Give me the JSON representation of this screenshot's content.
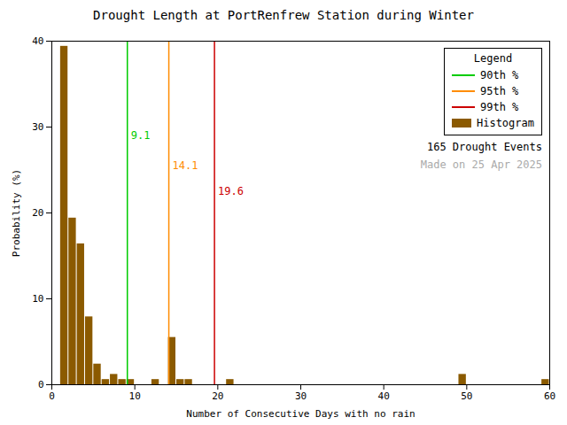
{
  "chart_data": {
    "type": "histogram",
    "title": "Drought Length at PortRenfrew Station during Winter",
    "xlabel": "Number of Consecutive Days with no rain",
    "ylabel": "Probability (%)",
    "xlim": [
      0,
      60
    ],
    "ylim": [
      0,
      40
    ],
    "xticks": [
      0,
      10,
      20,
      30,
      40,
      50,
      60
    ],
    "yticks": [
      0,
      10,
      20,
      30,
      40
    ],
    "grid": false,
    "legend": "upper right",
    "legend_title": "Legend",
    "series": [
      {
        "name": "90th %",
        "type": "vline",
        "color": "#00CC00",
        "values": [
          9.1
        ],
        "data_labels": true
      },
      {
        "name": "95th %",
        "type": "vline",
        "color": "#FF8C00",
        "values": [
          14.1
        ],
        "data_labels": true
      },
      {
        "name": "99th %",
        "type": "vline",
        "color": "#CC0000",
        "values": [
          19.6
        ],
        "data_labels": true
      },
      {
        "name": "Histogram",
        "type": "histogram",
        "color": "#8B5A00",
        "bins": [
          1,
          2,
          3,
          4,
          5,
          6,
          7,
          8,
          9,
          10,
          11,
          12,
          13,
          14,
          15,
          16,
          17,
          18,
          19,
          20,
          21,
          22,
          23,
          24,
          25,
          26,
          27,
          28,
          29,
          30,
          31,
          32,
          33,
          34,
          35,
          36,
          37,
          38,
          39,
          40,
          41,
          42,
          43,
          44,
          45,
          46,
          47,
          48,
          49,
          50,
          51,
          52,
          53,
          54,
          55,
          56,
          57,
          58,
          59,
          60
        ],
        "values": [
          39.4,
          19.4,
          16.4,
          7.9,
          2.4,
          0.6,
          1.2,
          0.6,
          0.6,
          0.0,
          0.0,
          0.6,
          0.0,
          5.5,
          0.6,
          0.6,
          0.0,
          0.0,
          0.0,
          0.0,
          0.6,
          0.0,
          0.0,
          0.0,
          0.0,
          0.0,
          0.0,
          0.0,
          0.0,
          0.0,
          0.0,
          0.0,
          0.0,
          0.0,
          0.0,
          0.0,
          0.0,
          0.0,
          0.0,
          0.0,
          0.0,
          0.0,
          0.0,
          0.0,
          0.0,
          0.0,
          0.0,
          0.0,
          1.2,
          0.0,
          0.0,
          0.0,
          0.0,
          0.0,
          0.0,
          0.0,
          0.0,
          0.0,
          0.6
        ]
      }
    ],
    "annotations": [
      {
        "text": "165 Drought Events"
      },
      {
        "text": "Made on 25 Apr 2025",
        "color": "#AAAAAA"
      }
    ]
  }
}
